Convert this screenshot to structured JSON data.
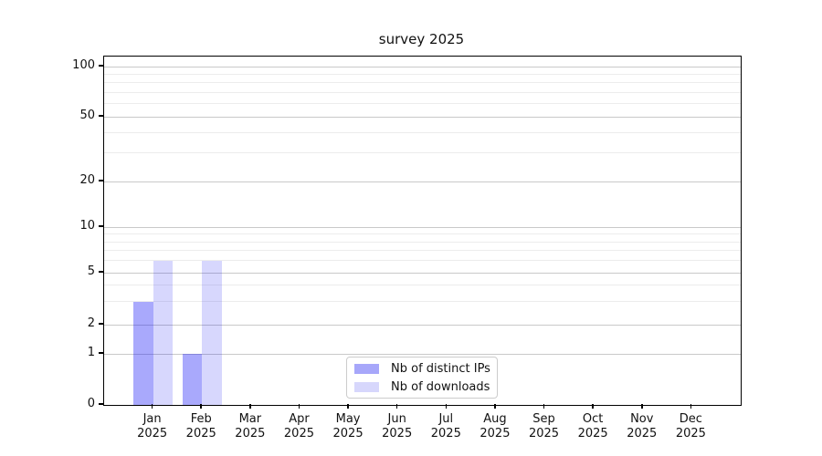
{
  "chart_data": {
    "type": "bar",
    "title": "survey 2025",
    "xlabel": "",
    "ylabel": "",
    "yscale": "symlog",
    "ylim": [
      0,
      115
    ],
    "grid": true,
    "legend_position": "lower center",
    "yticks": [
      0,
      1,
      2,
      5,
      10,
      20,
      50,
      100
    ],
    "categories": [
      {
        "month": "Jan",
        "year": "2025"
      },
      {
        "month": "Feb",
        "year": "2025"
      },
      {
        "month": "Mar",
        "year": "2025"
      },
      {
        "month": "Apr",
        "year": "2025"
      },
      {
        "month": "May",
        "year": "2025"
      },
      {
        "month": "Jun",
        "year": "2025"
      },
      {
        "month": "Jul",
        "year": "2025"
      },
      {
        "month": "Aug",
        "year": "2025"
      },
      {
        "month": "Sep",
        "year": "2025"
      },
      {
        "month": "Oct",
        "year": "2025"
      },
      {
        "month": "Nov",
        "year": "2025"
      },
      {
        "month": "Dec",
        "year": "2025"
      }
    ],
    "series": [
      {
        "name": "Nb of distinct IPs",
        "color": "#a7a7fa",
        "bar_color": "rgba(8,8,245,0.35)",
        "values": [
          3,
          1,
          0,
          0,
          0,
          0,
          0,
          0,
          0,
          0,
          0,
          0
        ]
      },
      {
        "name": "Nb of downloads",
        "color": "#d7d7fc",
        "bar_color": "rgba(8,8,245,0.16)",
        "values": [
          6,
          6,
          0,
          0,
          0,
          0,
          0,
          0,
          0,
          0,
          0,
          0
        ]
      }
    ],
    "colors": {
      "grid_major": "#c9c9c9",
      "grid_minor": "#ececec",
      "frame": "#000000",
      "background": "#ffffff"
    }
  }
}
